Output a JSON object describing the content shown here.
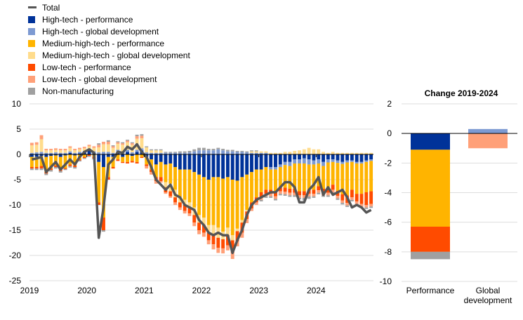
{
  "legend": {
    "items": [
      {
        "key": "total",
        "label": "Total",
        "color": "#555555",
        "kind": "line"
      },
      {
        "key": "ht_perf",
        "label": "High-tech - performance",
        "color": "#003299",
        "kind": "box"
      },
      {
        "key": "ht_glob",
        "label": "High-tech - global development",
        "color": "#7d9ad2",
        "kind": "box"
      },
      {
        "key": "mht_perf",
        "label": "Medium-high-tech - performance",
        "color": "#ffb400",
        "kind": "box"
      },
      {
        "key": "mht_glob",
        "label": "Medium-high-tech - global development",
        "color": "#ffdc8c",
        "kind": "box"
      },
      {
        "key": "lt_perf",
        "label": "Low-tech - performance",
        "color": "#ff4b00",
        "kind": "box"
      },
      {
        "key": "lt_glob",
        "label": "Low-tech - global development",
        "color": "#ffa078",
        "kind": "box"
      },
      {
        "key": "nonman",
        "label": "Non-manufacturing",
        "color": "#a0a0a0",
        "kind": "box"
      }
    ]
  },
  "chart_data": [
    {
      "type": "bar",
      "stacked": true,
      "title": "",
      "xlabel": "",
      "ylabel": "",
      "ylim": [
        -25,
        10
      ],
      "yticks": [
        10,
        5,
        0,
        -5,
        -10,
        -15,
        -20,
        -25
      ],
      "xtick_labels": [
        "2019",
        "2020",
        "2021",
        "2022",
        "2023",
        "2024"
      ],
      "grid": "horizontal",
      "series_order": [
        "ht_perf",
        "ht_glob",
        "mht_perf",
        "mht_glob",
        "lt_perf",
        "lt_glob",
        "nonman"
      ],
      "months": [
        "2019-01",
        "2019-02",
        "2019-03",
        "2019-04",
        "2019-05",
        "2019-06",
        "2019-07",
        "2019-08",
        "2019-09",
        "2019-10",
        "2019-11",
        "2019-12",
        "2020-01",
        "2020-02",
        "2020-03",
        "2020-04",
        "2020-05",
        "2020-06",
        "2020-07",
        "2020-08",
        "2020-09",
        "2020-10",
        "2020-11",
        "2020-12",
        "2021-01",
        "2021-02",
        "2021-03",
        "2021-04",
        "2021-05",
        "2021-06",
        "2021-07",
        "2021-08",
        "2021-09",
        "2021-10",
        "2021-11",
        "2021-12",
        "2022-01",
        "2022-02",
        "2022-03",
        "2022-04",
        "2022-05",
        "2022-06",
        "2022-07",
        "2022-08",
        "2022-09",
        "2022-10",
        "2022-11",
        "2022-12",
        "2023-01",
        "2023-02",
        "2023-03",
        "2023-04",
        "2023-05",
        "2023-06",
        "2023-07",
        "2023-08",
        "2023-09",
        "2023-10",
        "2023-11",
        "2023-12",
        "2024-01",
        "2024-02",
        "2024-03",
        "2024-04",
        "2024-05",
        "2024-06",
        "2024-07",
        "2024-08",
        "2024-09",
        "2024-10",
        "2024-11",
        "2024-12"
      ],
      "series": [
        {
          "key": "ht_perf",
          "values": [
            -0.5,
            -0.5,
            -0.3,
            -0.5,
            -0.3,
            -0.2,
            -0.5,
            -0.2,
            0.3,
            -0.2,
            0.2,
            0.4,
            0.8,
            0.3,
            -1.5,
            -2.5,
            -0.5,
            -0.5,
            0.5,
            -0.5,
            0.5,
            -0.3,
            0.5,
            0.8,
            -0.5,
            -1.0,
            -2.0,
            -1.5,
            -2.0,
            -1.8,
            -2.5,
            -3.0,
            -3.0,
            -3.0,
            -3.5,
            -4.0,
            -4.5,
            -5.0,
            -4.5,
            -4.5,
            -4.8,
            -4.5,
            -5.0,
            -5.2,
            -4.5,
            -4.0,
            -3.5,
            -3.0,
            -3.0,
            -2.5,
            -2.5,
            -2.5,
            -2.0,
            -1.5,
            -1.5,
            -1.0,
            -1.0,
            -0.8,
            -1.0,
            -1.2,
            -1.0,
            -1.5,
            -1.0,
            -1.0,
            -1.2,
            -1.5,
            -1.2,
            -1.2,
            -1.5,
            -1.5,
            -1.2,
            -1.0
          ]
        },
        {
          "key": "ht_glob",
          "values": [
            0.3,
            0.4,
            0.5,
            0.3,
            0.3,
            0.4,
            0.3,
            0.3,
            0.3,
            0.3,
            0.3,
            0.3,
            0.3,
            0.3,
            0.4,
            0.5,
            0.5,
            0.3,
            0.4,
            0.4,
            0.4,
            0.4,
            0.4,
            0.4,
            0.4,
            0.3,
            0.3,
            0.3,
            0.3,
            0.3,
            0.3,
            0.3,
            0.3,
            0.4,
            0.6,
            0.8,
            0.8,
            0.8,
            0.8,
            1.0,
            0.8,
            0.6,
            0.6,
            0.5,
            0.5,
            0.4,
            0.3,
            0.3,
            0.3,
            0.3,
            -0.5,
            -0.5,
            -0.5,
            -0.6,
            -0.8,
            -0.8,
            -0.8,
            -1.0,
            -1.0,
            -0.8,
            -0.8,
            -0.8,
            -0.6,
            -0.5,
            -0.5,
            -0.4,
            -0.4,
            -0.3,
            -0.3,
            -0.3,
            -0.3,
            -0.3
          ]
        },
        {
          "key": "mht_perf",
          "values": [
            -2.0,
            -2.0,
            -2.0,
            -3.0,
            -2.5,
            -2.0,
            -2.5,
            -2.5,
            -2.0,
            -2.0,
            -1.0,
            -0.5,
            0.0,
            -0.5,
            -8.0,
            -10.0,
            -4.0,
            -2.0,
            -1.0,
            -1.0,
            -1.5,
            -1.0,
            -1.5,
            -0.5,
            -1.5,
            -2.0,
            -2.5,
            -3.0,
            -3.5,
            -4.0,
            -4.5,
            -5.5,
            -6.0,
            -6.5,
            -7.0,
            -8.0,
            -8.0,
            -9.0,
            -9.5,
            -10.0,
            -10.5,
            -10.0,
            -11.0,
            -9.5,
            -8.5,
            -7.0,
            -6.0,
            -5.5,
            -4.5,
            -4.5,
            -4.0,
            -4.5,
            -4.0,
            -4.5,
            -4.5,
            -5.0,
            -5.5,
            -5.5,
            -5.0,
            -5.0,
            -4.5,
            -4.5,
            -5.0,
            -4.5,
            -5.5,
            -6.0,
            -6.5,
            -5.5,
            -6.0,
            -6.0,
            -6.0,
            -6.0
          ]
        },
        {
          "key": "mht_glob",
          "values": [
            1.5,
            1.5,
            2.5,
            0.5,
            0.5,
            0.5,
            0.5,
            0.5,
            0.7,
            0.5,
            0.5,
            0.5,
            0.5,
            0.7,
            1.0,
            1.5,
            1.5,
            1.0,
            1.2,
            1.5,
            1.5,
            1.5,
            2.2,
            2.0,
            1.0,
            0.5,
            0.5,
            0.5,
            -1.0,
            -1.5,
            -1.5,
            -1.0,
            -1.0,
            -1.0,
            -1.5,
            -1.5,
            -1.5,
            -1.5,
            -2.0,
            -2.0,
            -1.5,
            -1.5,
            -1.0,
            -0.5,
            -0.5,
            -0.3,
            0.3,
            0.3,
            0.3,
            0.3,
            0.3,
            0.3,
            0.3,
            0.5,
            0.5,
            0.7,
            0.8,
            1.0,
            1.3,
            1.0,
            1.0,
            0.5,
            0.3,
            0.5,
            0.3,
            0.3,
            0.3,
            0.3,
            0.3,
            0.3,
            0.3,
            0.3
          ]
        },
        {
          "key": "lt_perf",
          "values": [
            -0.3,
            -0.3,
            -0.5,
            -0.3,
            -0.3,
            -0.3,
            -0.3,
            -0.2,
            -0.3,
            -0.3,
            -0.2,
            -0.2,
            -0.3,
            -0.3,
            -0.5,
            -2.5,
            -0.5,
            -0.3,
            -0.3,
            -0.2,
            -0.3,
            -0.3,
            -0.3,
            -0.2,
            -0.3,
            -0.5,
            -0.8,
            -0.8,
            -1.0,
            -1.0,
            -1.0,
            -1.0,
            -1.2,
            -1.2,
            -1.5,
            -1.5,
            -1.5,
            -1.5,
            -1.8,
            -2.0,
            -1.8,
            -2.0,
            -2.5,
            -2.0,
            -2.0,
            -1.5,
            -1.2,
            -1.0,
            -1.0,
            -0.8,
            -0.8,
            -0.8,
            -0.8,
            -0.8,
            -0.8,
            -0.8,
            -0.8,
            -0.8,
            -0.8,
            -0.8,
            -0.8,
            -0.8,
            -1.0,
            -1.0,
            -1.0,
            -1.2,
            -1.5,
            -1.5,
            -1.5,
            -2.0,
            -2.5,
            -2.5
          ]
        },
        {
          "key": "lt_glob",
          "values": [
            0.5,
            0.5,
            0.8,
            0.3,
            0.3,
            0.3,
            0.3,
            0.3,
            0.3,
            0.3,
            0.3,
            0.3,
            0.3,
            0.3,
            0.5,
            0.5,
            0.5,
            0.3,
            0.3,
            0.3,
            0.3,
            0.3,
            0.5,
            0.5,
            -0.5,
            -0.5,
            -0.5,
            -0.3,
            -0.3,
            -0.3,
            -0.5,
            -0.5,
            -0.5,
            -0.5,
            -0.7,
            -0.8,
            -0.8,
            -0.8,
            -1.0,
            -1.0,
            -1.0,
            -1.0,
            -1.2,
            -1.0,
            -1.0,
            -0.8,
            -0.5,
            -0.5,
            -0.5,
            -0.5,
            -0.5,
            -0.5,
            -0.5,
            -0.5,
            -0.5,
            -0.5,
            -0.5,
            -0.5,
            -0.5,
            -0.5,
            -0.5,
            -0.5,
            -0.5,
            -0.5,
            -0.5,
            -0.5,
            -0.5,
            -0.5,
            -0.5,
            -0.5,
            -0.5,
            -0.5
          ]
        },
        {
          "key": "nonman",
          "values": [
            -0.3,
            -0.3,
            -0.3,
            -0.3,
            -0.3,
            -0.3,
            -0.3,
            -0.2,
            -0.3,
            -0.3,
            -0.2,
            -0.2,
            -0.2,
            -0.2,
            0.3,
            -0.3,
            0.3,
            0.2,
            0.2,
            0.2,
            0.2,
            0.2,
            0.3,
            0.3,
            0.2,
            0.2,
            0.2,
            0.2,
            0.2,
            0.2,
            0.2,
            0.3,
            0.3,
            0.3,
            0.4,
            0.5,
            0.5,
            0.3,
            0.3,
            0.3,
            0.3,
            0.3,
            0.3,
            0.2,
            0.2,
            0.2,
            0.2,
            0.2,
            -0.3,
            -0.3,
            -0.3,
            -0.3,
            -0.3,
            -0.3,
            -0.3,
            -0.3,
            -0.3,
            -0.5,
            -0.5,
            -0.3,
            -0.3,
            -0.3,
            -0.3,
            -0.3,
            -0.3,
            -0.3,
            -0.3,
            -0.3,
            -0.3,
            -0.3,
            -0.3,
            -0.3
          ]
        },
        {
          "key": "total",
          "type": "line",
          "values": [
            -1.0,
            -0.8,
            -0.5,
            -3.5,
            -2.5,
            -1.5,
            -3.0,
            -2.0,
            -1.0,
            -2.0,
            -0.5,
            0.5,
            1.0,
            0.3,
            -16.5,
            -10.5,
            -2.0,
            -1.0,
            0.5,
            0.3,
            1.5,
            1.0,
            2.0,
            0.5,
            -0.5,
            -2.5,
            -5.0,
            -6.0,
            -7.0,
            -6.0,
            -8.0,
            -8.5,
            -10.0,
            -10.5,
            -11.0,
            -13.0,
            -14.0,
            -15.5,
            -16.0,
            -15.5,
            -16.0,
            -16.0,
            -19.5,
            -17.0,
            -15.0,
            -12.0,
            -10.0,
            -9.0,
            -8.5,
            -8.0,
            -7.5,
            -7.5,
            -6.5,
            -5.5,
            -5.5,
            -6.5,
            -9.5,
            -9.5,
            -7.0,
            -6.0,
            -4.5,
            -8.0,
            -6.5,
            -8.0,
            -7.5,
            -7.0,
            -8.5,
            -10.5,
            -10.0,
            -10.5,
            -11.5,
            -11.0
          ]
        }
      ]
    },
    {
      "type": "bar",
      "stacked": true,
      "title": "Change 2019-2024",
      "ylim": [
        -10,
        2
      ],
      "yticks": [
        2,
        0,
        -2,
        -4,
        -6,
        -8,
        -10
      ],
      "grid": "horizontal",
      "categories": [
        "Performance",
        "Global development"
      ],
      "series": [
        {
          "key": "ht_perf",
          "values": [
            -1.1,
            0.0
          ]
        },
        {
          "key": "ht_glob",
          "values": [
            0.0,
            0.3
          ]
        },
        {
          "key": "mht_perf",
          "values": [
            -5.2,
            0.0
          ]
        },
        {
          "key": "mht_glob",
          "values": [
            0.0,
            0.0
          ]
        },
        {
          "key": "lt_perf",
          "values": [
            -1.7,
            0.0
          ]
        },
        {
          "key": "lt_glob",
          "values": [
            0.0,
            -1.0
          ]
        },
        {
          "key": "nonman",
          "values": [
            -0.5,
            0.0
          ]
        }
      ]
    }
  ]
}
